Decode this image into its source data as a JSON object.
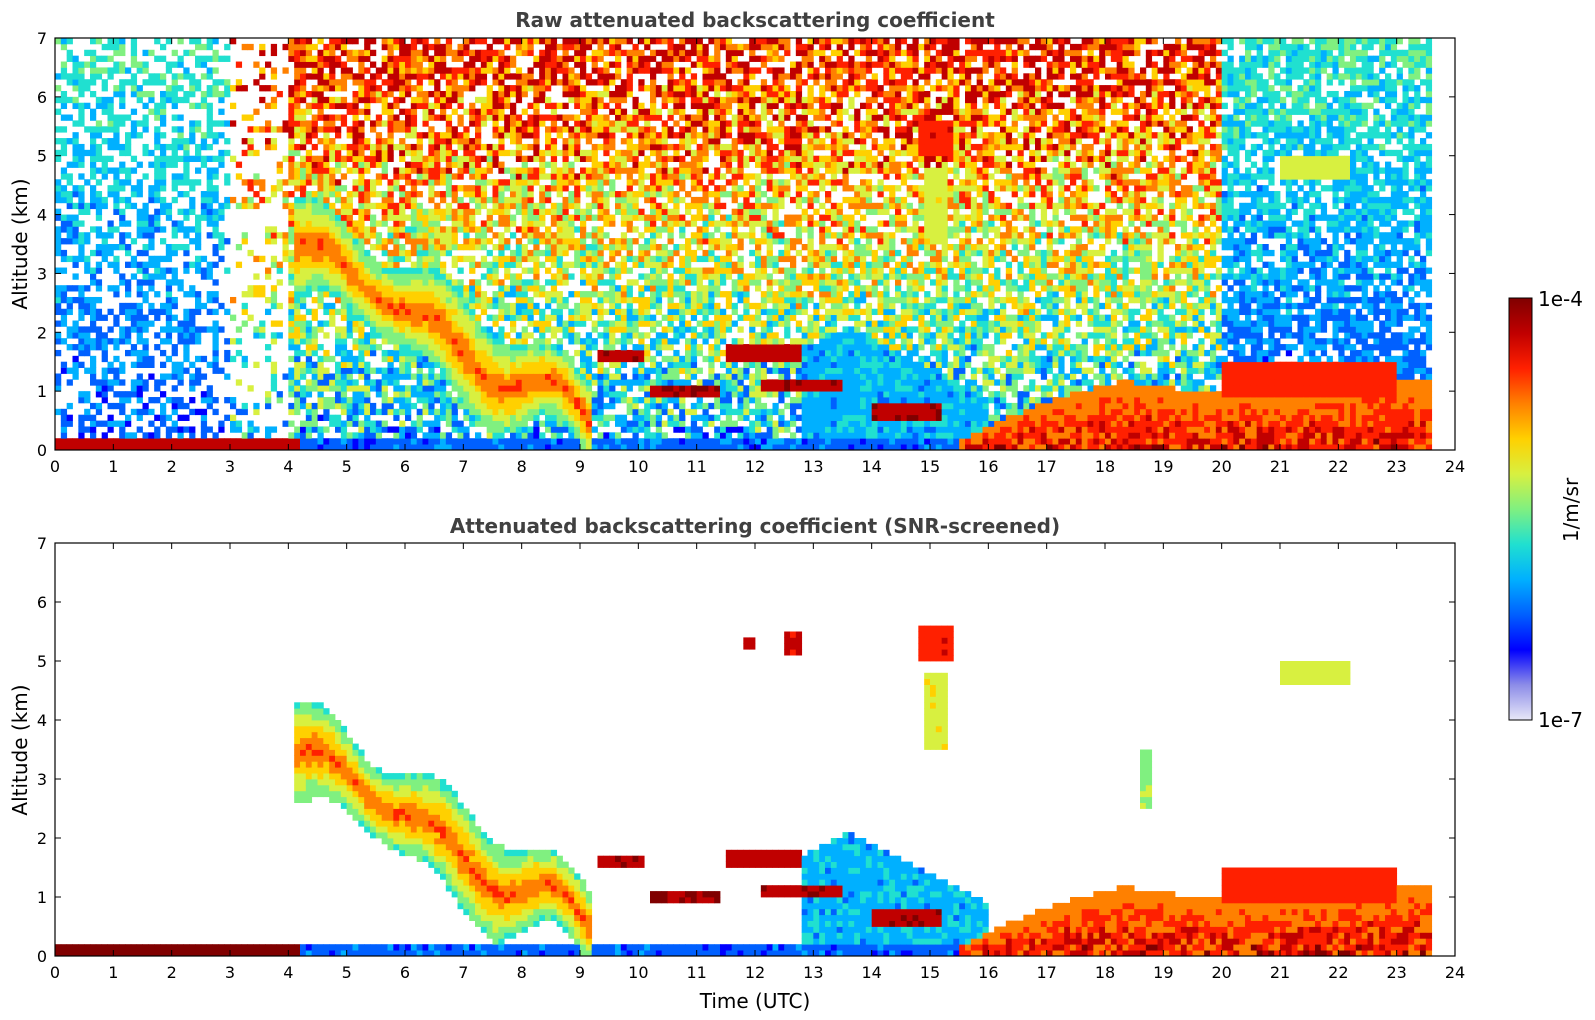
{
  "chart_data": [
    {
      "type": "heatmap",
      "title": "Raw attenuated backscattering coefficient",
      "ylabel": "Altitude (km)",
      "xlabel": "",
      "xlim": [
        0,
        24
      ],
      "ylim": [
        0,
        7
      ],
      "x_ticks": [
        "0",
        "1",
        "2",
        "3",
        "4",
        "5",
        "6",
        "7",
        "8",
        "9",
        "10",
        "11",
        "12",
        "13",
        "14",
        "15",
        "16",
        "17",
        "18",
        "19",
        "20",
        "21",
        "22",
        "23",
        "24"
      ],
      "y_ticks": [
        "0",
        "1",
        "2",
        "3",
        "4",
        "5",
        "6",
        "7"
      ],
      "data_end_hour": 23.6,
      "features": [
        {
          "name": "surface layer",
          "t0": 0,
          "t1": 4.2,
          "z0": 0.0,
          "z1": 0.15,
          "level": "high"
        },
        {
          "name": "descending aerosol plume",
          "t0": 4.1,
          "t1": 9.1,
          "z0": 0.9,
          "z1": 4.3,
          "level": "medium-high"
        },
        {
          "name": "cloud 9.5h",
          "t0": 9.3,
          "t1": 10.1,
          "z0": 1.5,
          "z1": 1.7,
          "level": "very-high"
        },
        {
          "name": "cloud 10.2h",
          "t0": 10.2,
          "t1": 11.4,
          "z0": 0.95,
          "z1": 1.15,
          "level": "very-high"
        },
        {
          "name": "cloud 11.5h",
          "t0": 11.5,
          "t1": 12.8,
          "z0": 1.55,
          "z1": 1.8,
          "level": "very-high"
        },
        {
          "name": "cloud 12.1h",
          "t0": 12.1,
          "t1": 13.5,
          "z0": 1.0,
          "z1": 1.2,
          "level": "very-high"
        },
        {
          "name": "high cloud 12h",
          "t0": 11.8,
          "t1": 12.8,
          "z0": 5.2,
          "z1": 5.5,
          "level": "very-high"
        },
        {
          "name": "high cloud 15h",
          "t0": 14.8,
          "t1": 15.4,
          "z0": 3.5,
          "z1": 5.6,
          "level": "medium"
        },
        {
          "name": "cloud 14h",
          "t0": 14.0,
          "t1": 15.2,
          "z0": 0.55,
          "z1": 0.8,
          "level": "very-high"
        },
        {
          "name": "boundary layer clouds",
          "t0": 15.5,
          "t1": 23.6,
          "z0": 0.0,
          "z1": 1.1,
          "level": "very-high"
        },
        {
          "name": "clouds 20-23h",
          "t0": 20.0,
          "t1": 23.0,
          "z0": 0.9,
          "z1": 1.6,
          "level": "high"
        },
        {
          "name": "high cloud 21.5h",
          "t0": 21.0,
          "t1": 22.2,
          "z0": 4.6,
          "z1": 5.0,
          "level": "medium"
        }
      ]
    },
    {
      "type": "heatmap",
      "title": "Attenuated backscattering coefficient (SNR-screened)",
      "ylabel": "Altitude (km)",
      "xlabel": "Time (UTC)",
      "xlim": [
        0,
        24
      ],
      "ylim": [
        0,
        7
      ],
      "x_ticks": [
        "0",
        "1",
        "2",
        "3",
        "4",
        "5",
        "6",
        "7",
        "8",
        "9",
        "10",
        "11",
        "12",
        "13",
        "14",
        "15",
        "16",
        "17",
        "18",
        "19",
        "20",
        "21",
        "22",
        "23",
        "24"
      ],
      "y_ticks": [
        "0",
        "1",
        "2",
        "3",
        "4",
        "5",
        "6",
        "7"
      ],
      "data_end_hour": 23.6,
      "masked_region": "low-SNR pixels removed (white)"
    }
  ],
  "colorbar": {
    "label": "1/m/sr",
    "max_label": "1e-4",
    "min_label": "1e-7",
    "scale": "log",
    "colormap": [
      "#e8e8f8",
      "#8c8ce8",
      "#0000ff",
      "#0060ff",
      "#00b0ff",
      "#20e0d0",
      "#80f080",
      "#d8f040",
      "#ffd000",
      "#ff8000",
      "#ff2000",
      "#c00000",
      "#800000"
    ]
  }
}
